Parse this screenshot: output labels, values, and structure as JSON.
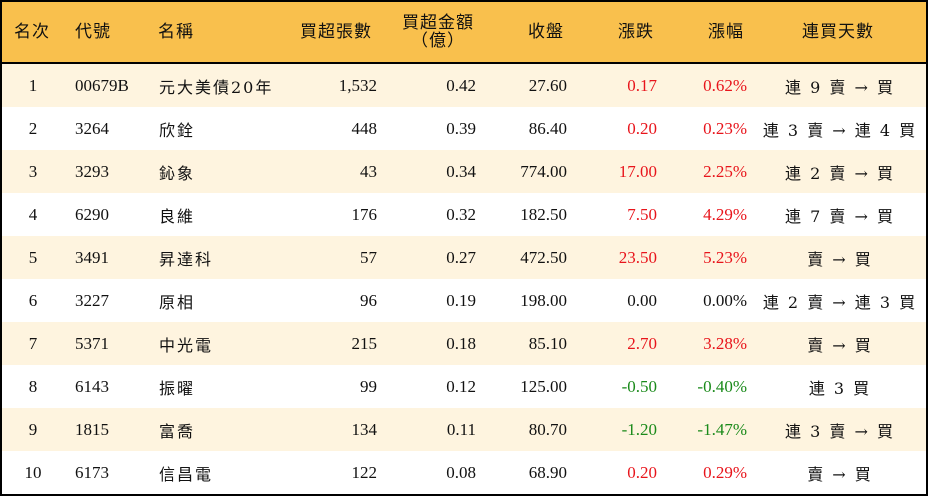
{
  "table": {
    "headers": {
      "rank": "名次",
      "code": "代號",
      "name": "名稱",
      "net_buy_lots": "買超張數",
      "net_buy_amount_line1": "買超金額",
      "net_buy_amount_line2": "（億）",
      "close": "收盤",
      "change": "漲跌",
      "change_pct": "漲幅",
      "consecutive_buy_days": "連買天數"
    },
    "colors": {
      "header_bg": "#F9C04D",
      "row_odd_bg": "#FEF4DF",
      "row_even_bg": "#FFFFFF",
      "up": "#E8141B",
      "down": "#1A8A1A",
      "flat": "#111111"
    },
    "rows": [
      {
        "rank": "1",
        "code": "00679B",
        "name": "元大美債20年",
        "net_buy_lots": "1,532",
        "net_buy_amount": "0.42",
        "close": "27.60",
        "change": "0.17",
        "change_pct": "0.62%",
        "direction": "up",
        "streak": "連 9 賣 → 買"
      },
      {
        "rank": "2",
        "code": "3264",
        "name": "欣銓",
        "net_buy_lots": "448",
        "net_buy_amount": "0.39",
        "close": "86.40",
        "change": "0.20",
        "change_pct": "0.23%",
        "direction": "up",
        "streak": "連 3 賣 → 連 4 買"
      },
      {
        "rank": "3",
        "code": "3293",
        "name": "鈊象",
        "net_buy_lots": "43",
        "net_buy_amount": "0.34",
        "close": "774.00",
        "change": "17.00",
        "change_pct": "2.25%",
        "direction": "up",
        "streak": "連 2 賣 → 買"
      },
      {
        "rank": "4",
        "code": "6290",
        "name": "良維",
        "net_buy_lots": "176",
        "net_buy_amount": "0.32",
        "close": "182.50",
        "change": "7.50",
        "change_pct": "4.29%",
        "direction": "up",
        "streak": "連 7 賣 → 買"
      },
      {
        "rank": "5",
        "code": "3491",
        "name": "昇達科",
        "net_buy_lots": "57",
        "net_buy_amount": "0.27",
        "close": "472.50",
        "change": "23.50",
        "change_pct": "5.23%",
        "direction": "up",
        "streak": "賣 → 買"
      },
      {
        "rank": "6",
        "code": "3227",
        "name": "原相",
        "net_buy_lots": "96",
        "net_buy_amount": "0.19",
        "close": "198.00",
        "change": "0.00",
        "change_pct": "0.00%",
        "direction": "flat",
        "streak": "連 2 賣 → 連 3 買"
      },
      {
        "rank": "7",
        "code": "5371",
        "name": "中光電",
        "net_buy_lots": "215",
        "net_buy_amount": "0.18",
        "close": "85.10",
        "change": "2.70",
        "change_pct": "3.28%",
        "direction": "up",
        "streak": "賣 → 買"
      },
      {
        "rank": "8",
        "code": "6143",
        "name": "振曜",
        "net_buy_lots": "99",
        "net_buy_amount": "0.12",
        "close": "125.00",
        "change": "-0.50",
        "change_pct": "-0.40%",
        "direction": "down",
        "streak": "連 3 買"
      },
      {
        "rank": "9",
        "code": "1815",
        "name": "富喬",
        "net_buy_lots": "134",
        "net_buy_amount": "0.11",
        "close": "80.70",
        "change": "-1.20",
        "change_pct": "-1.47%",
        "direction": "down",
        "streak": "連 3 賣 → 買"
      },
      {
        "rank": "10",
        "code": "6173",
        "name": "信昌電",
        "net_buy_lots": "122",
        "net_buy_amount": "0.08",
        "close": "68.90",
        "change": "0.20",
        "change_pct": "0.29%",
        "direction": "up",
        "streak": "賣 → 買"
      }
    ]
  }
}
